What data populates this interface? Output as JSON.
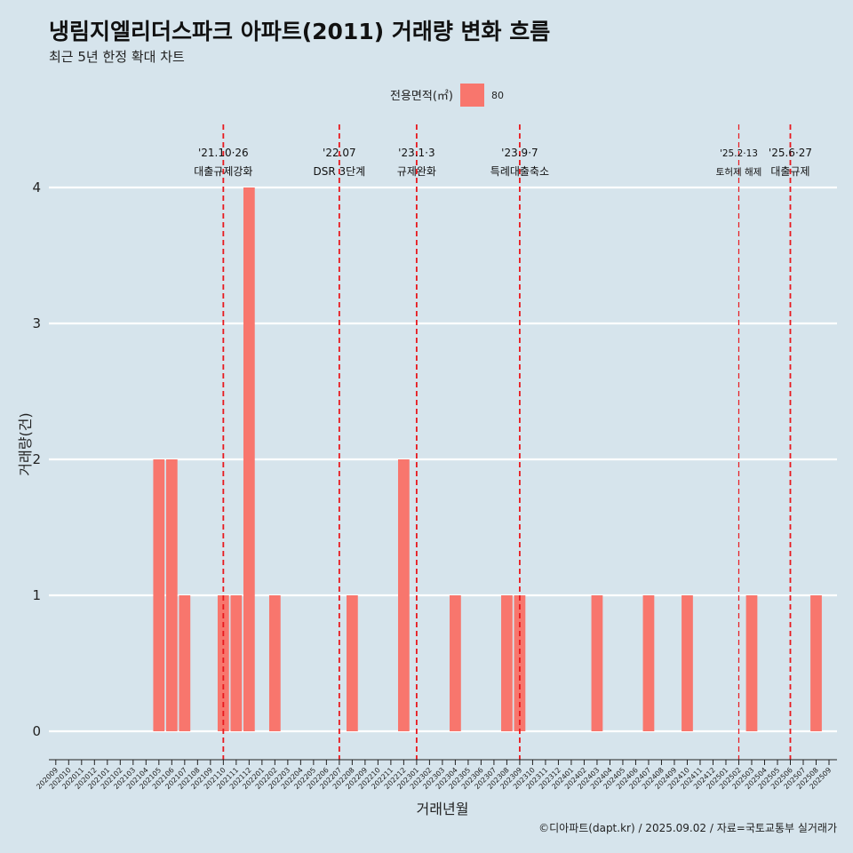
{
  "title": "냉림지엘리더스파크 아파트(2011) 거래량 변화 흐름",
  "subtitle": "최근 5년 한정 확대 차트",
  "caption": "©디아파트(dapt.kr) / 2025.09.02 / 자료=국토교통부 실거래가",
  "colors": {
    "bar": "#f8766d",
    "vline": "#e8191e",
    "background": "#d6e4ec",
    "grid": "#ffffff"
  },
  "chart_data": {
    "type": "bar",
    "xlabel": "거래년월",
    "ylabel": "거래량(건)",
    "ylim": [
      0,
      4
    ],
    "yticks": [
      0,
      1,
      2,
      3,
      4
    ],
    "grid": true,
    "legend": {
      "position": "top",
      "title": "전용면적(㎡)",
      "entries": [
        "80"
      ]
    },
    "categories": [
      "202009",
      "202010",
      "202011",
      "202012",
      "202101",
      "202102",
      "202103",
      "202104",
      "202105",
      "202106",
      "202107",
      "202108",
      "202109",
      "202110",
      "202111",
      "202112",
      "202201",
      "202202",
      "202203",
      "202204",
      "202205",
      "202206",
      "202207",
      "202208",
      "202209",
      "202210",
      "202211",
      "202212",
      "202301",
      "202302",
      "202303",
      "202304",
      "202305",
      "202306",
      "202307",
      "202308",
      "202309",
      "202310",
      "202311",
      "202312",
      "202401",
      "202402",
      "202403",
      "202404",
      "202405",
      "202406",
      "202407",
      "202408",
      "202409",
      "202410",
      "202411",
      "202412",
      "202501",
      "202502",
      "202503",
      "202504",
      "202505",
      "202506",
      "202507",
      "202508",
      "202509"
    ],
    "series": [
      {
        "name": "80",
        "values": [
          0,
          0,
          0,
          0,
          0,
          0,
          0,
          0,
          2,
          2,
          1,
          0,
          0,
          1,
          1,
          4,
          0,
          1,
          0,
          0,
          0,
          0,
          0,
          1,
          0,
          0,
          0,
          2,
          0,
          0,
          0,
          1,
          0,
          0,
          0,
          1,
          1,
          0,
          0,
          0,
          0,
          0,
          1,
          0,
          0,
          0,
          1,
          0,
          0,
          1,
          0,
          0,
          0,
          0,
          1,
          0,
          0,
          0,
          0,
          1,
          0
        ]
      }
    ],
    "bar_zero_values_drawn": true,
    "annotations": [
      {
        "at": "202110",
        "date": "'21.10·26",
        "label": "대출규제강화",
        "size": "normal"
      },
      {
        "at": "202207",
        "date": "'22.07",
        "label": "DSR 3단계",
        "size": "normal"
      },
      {
        "at": "202301",
        "date": "'23.1·3",
        "label": "규제완화",
        "size": "normal"
      },
      {
        "at": "202309",
        "date": "'23.9·7",
        "label": "특례대출축소",
        "size": "normal"
      },
      {
        "at": "202502",
        "date": "'25.2·13",
        "label": "토허제 해제",
        "size": "small"
      },
      {
        "at": "202506",
        "date": "'25.6·27",
        "label": "대출규제",
        "size": "normal"
      }
    ]
  }
}
